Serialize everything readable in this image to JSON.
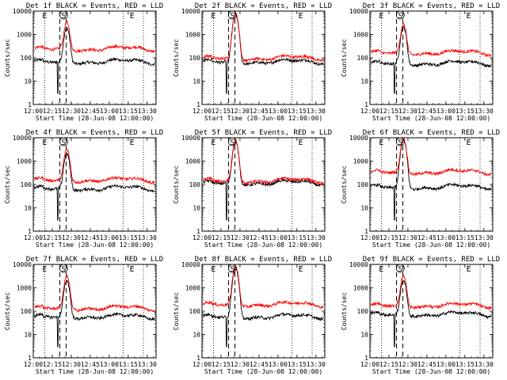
{
  "window": {
    "title": ""
  },
  "chart_data": {
    "type": "line",
    "layout": "3x3 grid",
    "shared": {
      "xlabel": "Start Time (28-Jun-08 12:00:00)",
      "ylabel": "Counts/sec",
      "x_ticks": [
        "12:00",
        "12:15",
        "12:30",
        "12:45",
        "13:00",
        "13:15",
        "13:30"
      ],
      "x_range": [
        "12:00",
        "13:37"
      ],
      "y_scale": "log",
      "y_range": [
        1,
        10000
      ],
      "y_ticks": [
        "1",
        "10",
        "100",
        "1000",
        "10000"
      ],
      "vlines_dotted": [
        "12:09",
        "13:11",
        "13:27"
      ],
      "vlines_dashed": [
        "12:21",
        "12:26"
      ],
      "markers": [
        {
          "x": "12:24",
          "label": "S"
        },
        {
          "x": "12:09",
          "label": "E"
        },
        {
          "x": "13:18",
          "label": "E"
        }
      ],
      "series_colors": {
        "events": "#000000",
        "lld": "#ff0000"
      }
    },
    "panels": [
      {
        "title": "Det 1f BLACK = Events, RED = LLD",
        "series": [
          {
            "color": "#000000",
            "base": 70,
            "peak": 1800
          },
          {
            "color": "#ff0000",
            "base": 250,
            "peak": 3000
          }
        ]
      },
      {
        "title": "Det 2f BLACK = Events, RED = LLD",
        "series": [
          {
            "color": "#000000",
            "base": 70,
            "peak": 7000
          },
          {
            "color": "#ff0000",
            "base": 100,
            "peak": 7500
          }
        ]
      },
      {
        "title": "Det 3f BLACK = Events, RED = LLD",
        "series": [
          {
            "color": "#000000",
            "base": 60,
            "peak": 2000
          },
          {
            "color": "#ff0000",
            "base": 170,
            "peak": 2500
          }
        ]
      },
      {
        "title": "Det 4f BLACK = Events, RED = LLD",
        "series": [
          {
            "color": "#000000",
            "base": 70,
            "peak": 2000
          },
          {
            "color": "#ff0000",
            "base": 160,
            "peak": 3000
          }
        ]
      },
      {
        "title": "Det 5f BLACK = Events, RED = LLD",
        "series": [
          {
            "color": "#000000",
            "base": 120,
            "peak": 6500
          },
          {
            "color": "#ff0000",
            "base": 150,
            "peak": 7000
          }
        ]
      },
      {
        "title": "Det 6f BLACK = Events, RED = LLD",
        "series": [
          {
            "color": "#000000",
            "base": 80,
            "peak": 8000
          },
          {
            "color": "#ff0000",
            "base": 350,
            "peak": 9000
          }
        ]
      },
      {
        "title": "Det 7f BLACK = Events, RED = LLD",
        "series": [
          {
            "color": "#000000",
            "base": 60,
            "peak": 2000
          },
          {
            "color": "#ff0000",
            "base": 140,
            "peak": 3000
          }
        ]
      },
      {
        "title": "Det 8f BLACK = Events, RED = LLD",
        "series": [
          {
            "color": "#000000",
            "base": 60,
            "peak": 7000
          },
          {
            "color": "#ff0000",
            "base": 200,
            "peak": 8000
          }
        ]
      },
      {
        "title": "Det 9f BLACK = Events, RED = LLD",
        "series": [
          {
            "color": "#000000",
            "base": 75,
            "peak": 2000
          },
          {
            "color": "#ff0000",
            "base": 180,
            "peak": 3000
          }
        ]
      }
    ]
  }
}
